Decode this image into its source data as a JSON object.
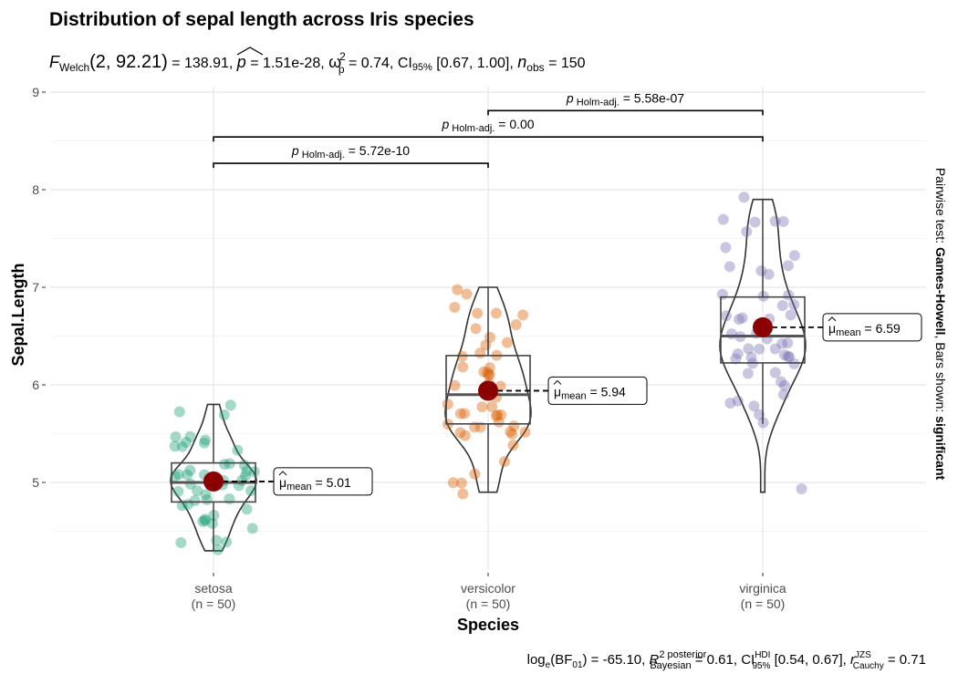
{
  "chart_data": {
    "type": "violin",
    "title": "Distribution of sepal length across Iris species",
    "subtitle": {
      "F": "F",
      "F_sub": "Welch",
      "df": "(2, 92.21)",
      "eq1": " = 138.91, ",
      "p": "p",
      "eq2": " = 1.51e-28, ",
      "omega": "ω",
      "omega_sup": "2",
      "omega_sub": "p",
      "eq3": " = 0.74, CI",
      "ci_sub": "95%",
      "ci": " [0.67, 1.00], ",
      "n": "n",
      "n_sub": "obs",
      "eq4": " = 150"
    },
    "caption": {
      "log": "log",
      "log_sub": "e",
      "bf": "(BF",
      "bf_sub": "01",
      "eq1": ") = -65.10, ",
      "R": "R",
      "R_sup": "2 posterior",
      "R_sub": "Bayesian",
      "eq2": " = 0.61, CI",
      "ci_sup": "HDI",
      "ci_sub": "95%",
      "ci": " [0.54, 0.67], ",
      "r": "r",
      "r_sup": "JZS",
      "r_sub": "Cauchy",
      "eq3": " = 0.71"
    },
    "xlabel": "Species",
    "ylabel": "Sepal.Length",
    "ylim": [
      4.1,
      9.05
    ],
    "yticks": [
      "5",
      "6",
      "7",
      "8",
      "9"
    ],
    "grid": true,
    "right_label": {
      "pre": "Pairwise test: ",
      "test": "Games-Howell",
      "mid": ", Bars shown: ",
      "shown": "significant"
    },
    "categories": [
      {
        "name": "setosa",
        "n_label": "(n = 50)",
        "color": "#1B9E77",
        "mean": 5.01,
        "mean_label": "5.01",
        "box": {
          "q1": 4.8,
          "median": 5.0,
          "q3": 5.2,
          "lower": 4.3,
          "upper": 5.8
        },
        "values": [
          5.1,
          4.9,
          4.7,
          4.6,
          5.0,
          5.4,
          4.6,
          5.0,
          4.4,
          4.9,
          5.4,
          4.8,
          4.8,
          4.3,
          5.8,
          5.7,
          5.4,
          5.1,
          5.7,
          5.1,
          5.4,
          5.1,
          4.6,
          5.1,
          4.8,
          5.0,
          5.0,
          5.2,
          5.2,
          4.7,
          4.8,
          5.4,
          5.2,
          5.5,
          4.9,
          5.0,
          5.5,
          4.9,
          4.4,
          5.1,
          5.0,
          4.5,
          4.4,
          5.0,
          5.1,
          4.8,
          5.1,
          4.6,
          5.3,
          5.0
        ]
      },
      {
        "name": "versicolor",
        "n_label": "(n = 50)",
        "color": "#D95F02",
        "mean": 5.94,
        "mean_label": "5.94",
        "box": {
          "q1": 5.6,
          "median": 5.9,
          "q3": 6.3,
          "lower": 4.9,
          "upper": 7.0
        },
        "values": [
          7.0,
          6.4,
          6.9,
          5.5,
          6.5,
          5.7,
          6.3,
          4.9,
          6.6,
          5.2,
          5.0,
          5.9,
          6.0,
          6.1,
          5.6,
          6.7,
          5.6,
          5.8,
          6.2,
          5.6,
          5.9,
          6.1,
          6.3,
          6.1,
          6.4,
          6.6,
          6.8,
          6.7,
          6.0,
          5.7,
          5.5,
          5.5,
          5.8,
          6.0,
          5.4,
          6.0,
          6.7,
          6.3,
          5.6,
          5.5,
          5.5,
          6.1,
          5.8,
          5.0,
          5.6,
          5.7,
          5.7,
          6.2,
          5.1,
          5.7
        ]
      },
      {
        "name": "virginica",
        "n_label": "(n = 50)",
        "color": "#7570B3",
        "mean": 6.59,
        "mean_label": "6.59",
        "box": {
          "q1": 6.225,
          "median": 6.5,
          "q3": 6.9,
          "lower": 5.6,
          "upper": 7.9
        },
        "values": [
          6.3,
          5.8,
          7.1,
          6.3,
          6.5,
          7.6,
          4.9,
          7.3,
          6.7,
          7.2,
          6.5,
          6.4,
          6.8,
          5.7,
          5.8,
          6.4,
          6.5,
          7.7,
          7.7,
          6.0,
          6.9,
          5.6,
          7.7,
          6.3,
          6.7,
          7.2,
          6.2,
          6.1,
          6.4,
          7.2,
          7.4,
          7.9,
          6.4,
          6.3,
          6.1,
          7.7,
          6.3,
          6.4,
          6.0,
          6.9,
          6.7,
          6.9,
          5.8,
          6.8,
          6.7,
          6.7,
          6.3,
          6.5,
          6.2,
          5.9
        ]
      }
    ],
    "mean_symbol": "μ",
    "mean_sub": "mean",
    "mean_color": "#8B0000",
    "comparisons": [
      {
        "from": 0,
        "to": 1,
        "y": 8.27,
        "p_label": "p",
        "p_sub": "Holm-adj.",
        "value": " = 5.72e-10"
      },
      {
        "from": 0,
        "to": 2,
        "y": 8.54,
        "p_label": "p",
        "p_sub": "Holm-adj.",
        "value": " = 0.00"
      },
      {
        "from": 1,
        "to": 2,
        "y": 8.81,
        "p_label": "p",
        "p_sub": "Holm-adj.",
        "value": " = 5.58e-07"
      }
    ]
  }
}
